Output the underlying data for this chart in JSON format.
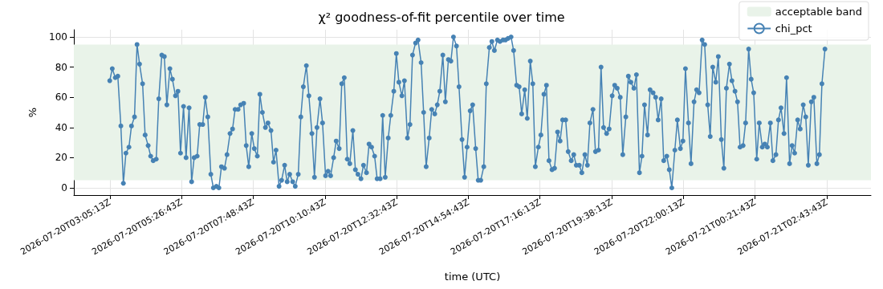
{
  "chart_data": {
    "type": "line",
    "title": "χ² goodness-of-fit percentile over time",
    "xlabel": "time (UTC)",
    "ylabel": "%",
    "x": [
      "2026-07-20T03:05",
      "2026-07-20T03:10",
      "2026-07-20T03:16",
      "2026-07-20T03:21",
      "2026-07-20T03:27",
      "2026-07-20T03:32",
      "2026-07-20T03:37",
      "2026-07-20T03:43",
      "2026-07-20T03:48",
      "2026-07-20T03:54",
      "2026-07-20T03:59",
      "2026-07-20T04:04",
      "2026-07-20T04:10",
      "2026-07-20T04:15",
      "2026-07-20T04:21",
      "2026-07-20T04:26",
      "2026-07-20T04:31",
      "2026-07-20T04:37",
      "2026-07-20T04:42",
      "2026-07-20T04:48",
      "2026-07-20T04:53",
      "2026-07-20T04:58",
      "2026-07-20T05:04",
      "2026-07-20T05:09",
      "2026-07-20T05:15",
      "2026-07-20T05:20",
      "2026-07-20T05:25",
      "2026-07-20T05:31",
      "2026-07-20T05:36",
      "2026-07-20T05:42",
      "2026-07-20T05:47",
      "2026-07-20T05:52",
      "2026-07-20T05:58",
      "2026-07-20T06:03",
      "2026-07-20T06:09",
      "2026-07-20T06:14",
      "2026-07-20T06:19",
      "2026-07-20T06:25",
      "2026-07-20T06:30",
      "2026-07-20T06:36",
      "2026-07-20T06:41",
      "2026-07-20T06:46",
      "2026-07-20T06:52",
      "2026-07-20T06:57",
      "2026-07-20T07:03",
      "2026-07-20T07:08",
      "2026-07-20T07:13",
      "2026-07-20T07:19",
      "2026-07-20T07:24",
      "2026-07-20T07:30",
      "2026-07-20T07:35",
      "2026-07-20T07:40",
      "2026-07-20T07:46",
      "2026-07-20T07:51",
      "2026-07-20T07:57",
      "2026-07-20T08:02",
      "2026-07-20T08:07",
      "2026-07-20T08:13",
      "2026-07-20T08:18",
      "2026-07-20T08:24",
      "2026-07-20T08:29",
      "2026-07-20T08:34",
      "2026-07-20T08:40",
      "2026-07-20T08:45",
      "2026-07-20T08:51",
      "2026-07-20T08:56",
      "2026-07-20T09:01",
      "2026-07-20T09:07",
      "2026-07-20T09:12",
      "2026-07-20T09:18",
      "2026-07-20T09:23",
      "2026-07-20T09:28",
      "2026-07-20T09:34",
      "2026-07-20T09:39",
      "2026-07-20T09:45",
      "2026-07-20T09:50",
      "2026-07-20T09:55",
      "2026-07-20T10:01",
      "2026-07-20T10:06",
      "2026-07-20T10:12",
      "2026-07-20T10:17",
      "2026-07-20T10:22",
      "2026-07-20T10:28",
      "2026-07-20T10:33",
      "2026-07-20T10:39",
      "2026-07-20T10:44",
      "2026-07-20T10:49",
      "2026-07-20T10:55",
      "2026-07-20T11:00",
      "2026-07-20T11:06",
      "2026-07-20T11:11",
      "2026-07-20T11:16",
      "2026-07-20T11:22",
      "2026-07-20T11:27",
      "2026-07-20T11:33",
      "2026-07-20T11:38",
      "2026-07-20T11:43",
      "2026-07-20T11:49",
      "2026-07-20T11:54",
      "2026-07-20T12:00",
      "2026-07-20T12:05",
      "2026-07-20T12:10",
      "2026-07-20T12:16",
      "2026-07-20T12:21",
      "2026-07-20T12:27",
      "2026-07-20T12:32",
      "2026-07-20T12:37",
      "2026-07-20T12:43",
      "2026-07-20T12:48",
      "2026-07-20T12:54",
      "2026-07-20T12:59",
      "2026-07-20T13:04",
      "2026-07-20T13:10",
      "2026-07-20T13:15",
      "2026-07-20T13:21",
      "2026-07-20T13:26",
      "2026-07-20T13:31",
      "2026-07-20T13:37",
      "2026-07-20T13:42",
      "2026-07-20T13:48",
      "2026-07-20T13:53",
      "2026-07-20T13:58",
      "2026-07-20T14:04",
      "2026-07-20T14:09",
      "2026-07-20T14:15",
      "2026-07-20T14:20",
      "2026-07-20T14:25",
      "2026-07-20T14:31",
      "2026-07-20T14:36",
      "2026-07-20T14:42",
      "2026-07-20T14:47",
      "2026-07-20T14:52",
      "2026-07-20T14:58",
      "2026-07-20T15:03",
      "2026-07-20T15:09",
      "2026-07-20T15:14",
      "2026-07-20T15:19",
      "2026-07-20T15:25",
      "2026-07-20T15:30",
      "2026-07-20T15:36",
      "2026-07-20T15:41",
      "2026-07-20T15:46",
      "2026-07-20T15:52",
      "2026-07-20T15:57",
      "2026-07-20T16:03",
      "2026-07-20T16:08",
      "2026-07-20T16:13",
      "2026-07-20T16:19",
      "2026-07-20T16:24",
      "2026-07-20T16:30",
      "2026-07-20T16:35",
      "2026-07-20T16:40",
      "2026-07-20T16:46",
      "2026-07-20T16:51",
      "2026-07-20T16:57",
      "2026-07-20T17:02",
      "2026-07-20T17:07",
      "2026-07-20T17:13",
      "2026-07-20T17:18",
      "2026-07-20T17:24",
      "2026-07-20T17:29",
      "2026-07-20T17:34",
      "2026-07-20T17:40",
      "2026-07-20T17:45",
      "2026-07-20T17:51",
      "2026-07-20T17:56",
      "2026-07-20T18:01",
      "2026-07-20T18:07",
      "2026-07-20T18:12",
      "2026-07-20T18:18",
      "2026-07-20T18:23",
      "2026-07-20T18:28",
      "2026-07-20T18:34",
      "2026-07-20T18:39",
      "2026-07-20T18:45",
      "2026-07-20T18:50",
      "2026-07-20T18:55",
      "2026-07-20T19:01",
      "2026-07-20T19:06",
      "2026-07-20T19:12",
      "2026-07-20T19:17",
      "2026-07-20T19:22",
      "2026-07-20T19:28",
      "2026-07-20T19:33",
      "2026-07-20T19:39",
      "2026-07-20T19:44",
      "2026-07-20T19:49",
      "2026-07-20T19:55",
      "2026-07-20T20:00",
      "2026-07-20T20:06",
      "2026-07-20T20:11",
      "2026-07-20T20:16",
      "2026-07-20T20:22",
      "2026-07-20T20:27",
      "2026-07-20T20:33",
      "2026-07-20T20:38",
      "2026-07-20T20:43",
      "2026-07-20T20:49",
      "2026-07-20T20:54",
      "2026-07-20T21:00",
      "2026-07-20T21:05",
      "2026-07-20T21:10",
      "2026-07-20T21:16",
      "2026-07-20T21:21",
      "2026-07-20T21:27",
      "2026-07-20T21:32",
      "2026-07-20T21:37",
      "2026-07-20T21:43",
      "2026-07-20T21:48",
      "2026-07-20T21:54",
      "2026-07-20T21:59",
      "2026-07-20T22:04",
      "2026-07-20T22:10",
      "2026-07-20T22:15",
      "2026-07-20T22:21",
      "2026-07-20T22:26",
      "2026-07-20T22:31",
      "2026-07-20T22:37",
      "2026-07-20T22:42",
      "2026-07-20T22:48",
      "2026-07-20T22:53",
      "2026-07-20T22:58",
      "2026-07-20T23:04",
      "2026-07-20T23:09",
      "2026-07-20T23:15",
      "2026-07-20T23:20",
      "2026-07-20T23:25",
      "2026-07-20T23:31",
      "2026-07-20T23:36",
      "2026-07-20T23:42",
      "2026-07-20T23:47",
      "2026-07-20T23:52",
      "2026-07-20T23:58",
      "2026-07-21T00:03",
      "2026-07-21T00:09",
      "2026-07-21T00:14",
      "2026-07-21T00:19",
      "2026-07-21T00:25",
      "2026-07-21T00:30",
      "2026-07-21T00:36",
      "2026-07-21T00:41",
      "2026-07-21T00:46",
      "2026-07-21T00:52",
      "2026-07-21T00:57",
      "2026-07-21T01:03",
      "2026-07-21T01:08",
      "2026-07-21T01:13",
      "2026-07-21T01:19",
      "2026-07-21T01:24",
      "2026-07-21T01:30",
      "2026-07-21T01:35",
      "2026-07-21T01:40",
      "2026-07-21T01:46",
      "2026-07-21T01:51",
      "2026-07-21T01:57",
      "2026-07-21T02:02",
      "2026-07-21T02:07",
      "2026-07-21T02:13",
      "2026-07-21T02:18",
      "2026-07-21T02:24",
      "2026-07-21T02:29",
      "2026-07-21T02:34",
      "2026-07-21T02:40"
    ],
    "series": [
      {
        "name": "chi_pct",
        "color": "#4682b4",
        "values": [
          71,
          79,
          73,
          74,
          41,
          3,
          23,
          27,
          41,
          47,
          95,
          82,
          69,
          35,
          28,
          21,
          18,
          19,
          59,
          88,
          87,
          55,
          79,
          72,
          61,
          64,
          23,
          54,
          20,
          53,
          4,
          20,
          21,
          42,
          42,
          60,
          47,
          9,
          0,
          1,
          0,
          14,
          13,
          22,
          36,
          39,
          52,
          52,
          55,
          56,
          28,
          14,
          36,
          26,
          21,
          62,
          50,
          40,
          43,
          38,
          17,
          25,
          1,
          5,
          15,
          4,
          9,
          4,
          1,
          9,
          47,
          67,
          81,
          61,
          36,
          7,
          40,
          59,
          43,
          8,
          11,
          8,
          20,
          31,
          26,
          69,
          73,
          19,
          16,
          38,
          12,
          9,
          6,
          15,
          10,
          29,
          27,
          21,
          6,
          6,
          48,
          7,
          33,
          48,
          64,
          89,
          70,
          61,
          71,
          33,
          42,
          88,
          96,
          98,
          83,
          50,
          14,
          33,
          52,
          49,
          55,
          64,
          88,
          57,
          85,
          84,
          100,
          94,
          67,
          32,
          7,
          27,
          51,
          55,
          26,
          5,
          5,
          14,
          69,
          93,
          97,
          91,
          98,
          97,
          98,
          98,
          99,
          100,
          91,
          68,
          67,
          49,
          65,
          46,
          84,
          69,
          14,
          27,
          35,
          62,
          68,
          18,
          12,
          13,
          37,
          31,
          45,
          45,
          24,
          18,
          22,
          15,
          15,
          10,
          22,
          15,
          43,
          52,
          24,
          25,
          80,
          40,
          36,
          39,
          61,
          68,
          66,
          60,
          22,
          47,
          74,
          70,
          66,
          75,
          10,
          21,
          55,
          35,
          65,
          63,
          60,
          45,
          59,
          18,
          21,
          12,
          0,
          25,
          45,
          26,
          31,
          79,
          43,
          16,
          57,
          65,
          63,
          98,
          95,
          55,
          34,
          80,
          70,
          87,
          32,
          13,
          66,
          82,
          71,
          64,
          57,
          27,
          28,
          43,
          92,
          72,
          63,
          19,
          43,
          27,
          29,
          27,
          43,
          18,
          22,
          45,
          53,
          36,
          73,
          16,
          28,
          23,
          45,
          39,
          55,
          47,
          15,
          57,
          60,
          16,
          22,
          69,
          92
        ]
      }
    ],
    "bands": [
      {
        "axis": "y",
        "from": 5,
        "to": 95,
        "label": "acceptable band",
        "color": "#e9f3e9"
      }
    ],
    "xlim": [
      "2026-07-20T01:54",
      "2026-07-21T04:11"
    ],
    "xticks": [
      {
        "value": "2026-07-20T03:05:13",
        "label": "2026-07-20T03:05:13Z"
      },
      {
        "value": "2026-07-20T05:26:43",
        "label": "2026-07-20T05:26:43Z"
      },
      {
        "value": "2026-07-20T07:48:43",
        "label": "2026-07-20T07:48:43Z"
      },
      {
        "value": "2026-07-20T10:10:43",
        "label": "2026-07-20T10:10:43Z"
      },
      {
        "value": "2026-07-20T12:32:43",
        "label": "2026-07-20T12:32:43Z"
      },
      {
        "value": "2026-07-20T14:54:43",
        "label": "2026-07-20T14:54:43Z"
      },
      {
        "value": "2026-07-20T17:16:13",
        "label": "2026-07-20T17:16:13Z"
      },
      {
        "value": "2026-07-20T19:38:13",
        "label": "2026-07-20T19:38:13Z"
      },
      {
        "value": "2026-07-20T22:00:13",
        "label": "2026-07-20T22:00:13Z"
      },
      {
        "value": "2026-07-21T00:21:43",
        "label": "2026-07-21T00:21:43Z"
      },
      {
        "value": "2026-07-21T02:43:43",
        "label": "2026-07-21T02:43:43Z"
      }
    ],
    "ylim": [
      -4.8,
      104.8
    ],
    "yticks": [
      0,
      20,
      40,
      60,
      80,
      100
    ],
    "grid": true,
    "legend": "top right",
    "marker": "circle",
    "line_style": "solid"
  }
}
